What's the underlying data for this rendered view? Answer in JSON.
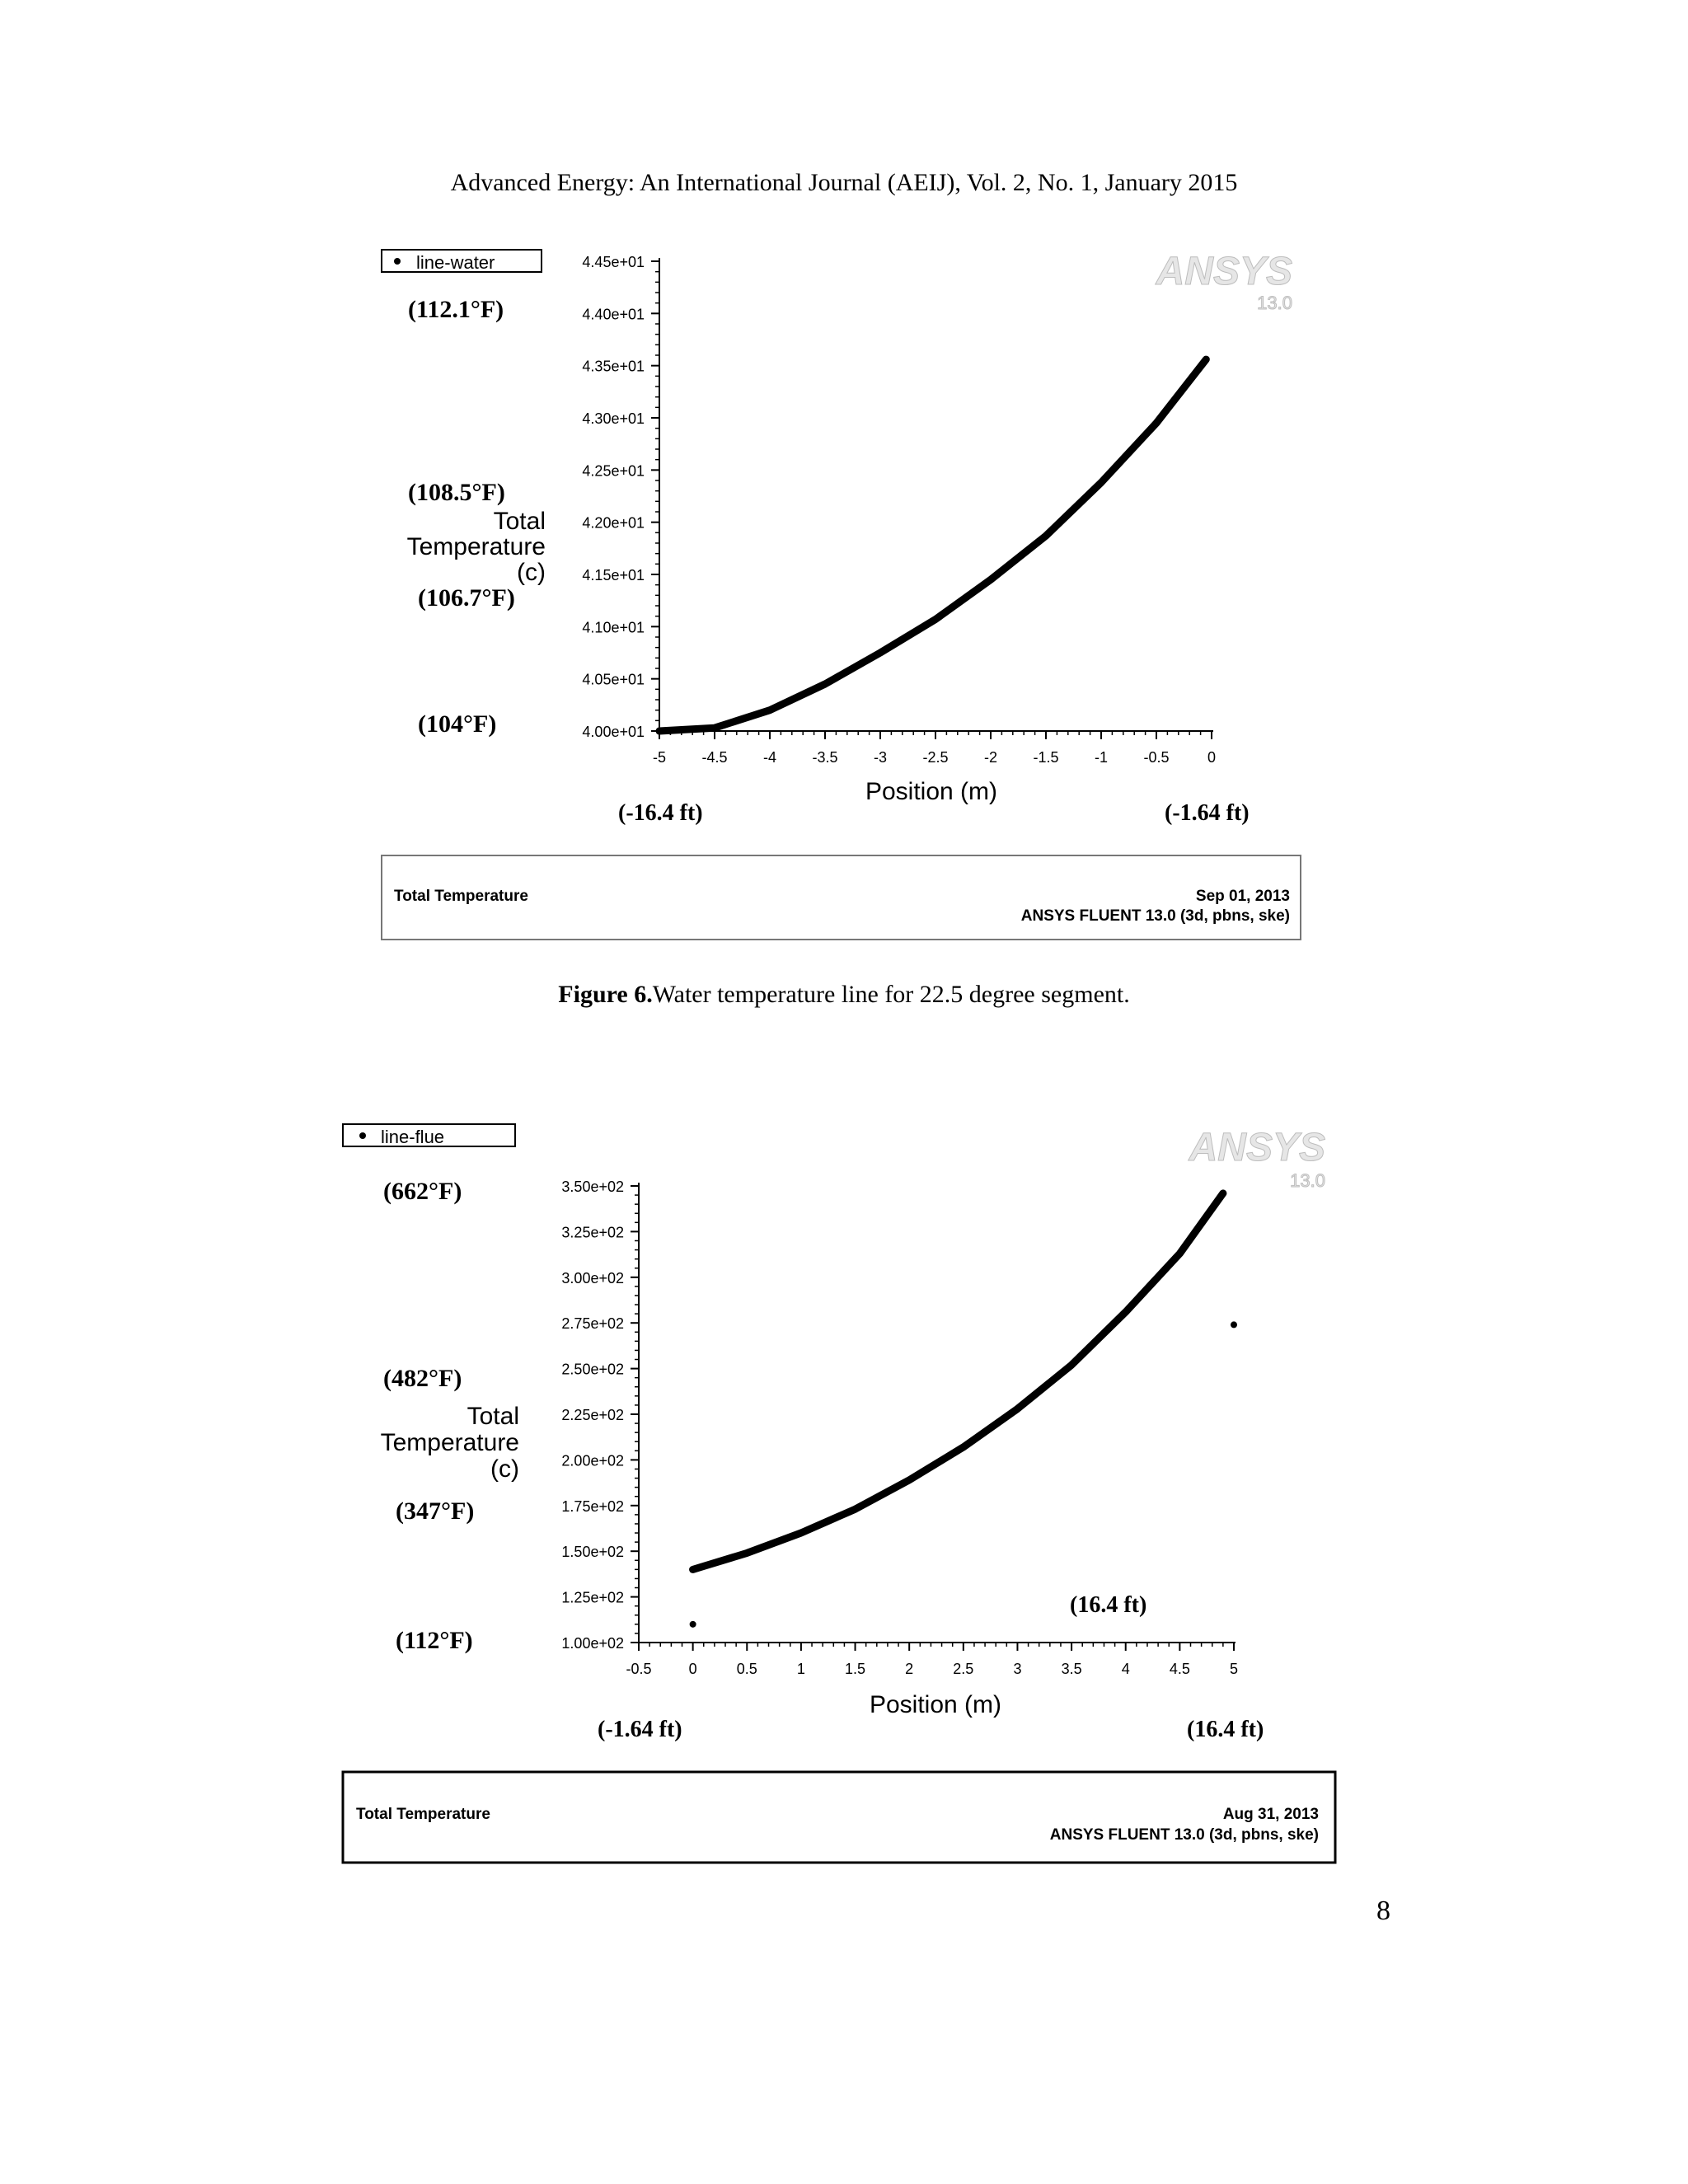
{
  "header": "Advanced Energy: An International Journal (AEIJ), Vol. 2, No. 1, January 2015",
  "page_number": "8",
  "figure6": {
    "caption_bold": "Figure 6.",
    "caption_text": "Water temperature line for 22.5 degree segment.",
    "legend": "line-water",
    "logo": "ANSYS",
    "logo_version": "13.0",
    "footer_left": "Total Temperature",
    "footer_date": "Sep 01, 2013",
    "footer_solver": "ANSYS FLUENT 13.0 (3d, pbns, ske)",
    "f_labels": [
      "(112.1°F)",
      "(108.5°F)",
      "(106.7°F)",
      "(104°F)"
    ],
    "ft_labels": [
      "(-16.4 ft)",
      "(-1.64 ft)"
    ]
  },
  "figure7": {
    "legend": "line-flue",
    "logo": "ANSYS",
    "logo_version": "13.0",
    "footer_left": "Total Temperature",
    "footer_date": "Aug 31, 2013",
    "footer_solver": "ANSYS FLUENT 13.0 (3d, pbns, ske)",
    "f_labels": [
      "(662°F)",
      "(482°F)",
      "(347°F)",
      "(112°F)"
    ],
    "ft_labels": [
      "(-1.64 ft)",
      "(16.4 ft)"
    ],
    "ft_inside_label": "(16.4 ft)"
  },
  "chart_data": [
    {
      "type": "scatter",
      "title": "",
      "xlabel": "Position (m)",
      "ylabel": [
        "Total",
        "Temperature",
        "(c)"
      ],
      "xlim": [
        -5,
        0
      ],
      "ylim": [
        40.0,
        44.5
      ],
      "xticks": [
        "-5",
        "-4.5",
        "-4",
        "-3.5",
        "-3",
        "-2.5",
        "-2",
        "-1.5",
        "-1",
        "-0.5",
        "0"
      ],
      "yticks": [
        "4.00e+01",
        "4.05e+01",
        "4.10e+01",
        "4.15e+01",
        "4.20e+01",
        "4.25e+01",
        "4.30e+01",
        "4.35e+01",
        "4.40e+01",
        "4.45e+01"
      ],
      "series": [
        {
          "name": "line-water",
          "x": [
            -5,
            -4.5,
            -4,
            -3.5,
            -3,
            -2.5,
            -2,
            -1.5,
            -1,
            -0.5,
            -0.05
          ],
          "y": [
            40.0,
            40.03,
            40.2,
            40.45,
            40.75,
            41.07,
            41.45,
            41.87,
            42.38,
            42.95,
            43.56
          ]
        }
      ]
    },
    {
      "type": "scatter",
      "title": "",
      "xlabel": "Position (m)",
      "ylabel": [
        "Total",
        "Temperature",
        "(c)"
      ],
      "xlim": [
        -0.5,
        5
      ],
      "ylim": [
        100,
        350
      ],
      "xticks": [
        "-0.5",
        "0",
        "0.5",
        "1",
        "1.5",
        "2",
        "2.5",
        "3",
        "3.5",
        "4",
        "4.5",
        "5"
      ],
      "yticks": [
        "1.00e+02",
        "1.25e+02",
        "1.50e+02",
        "1.75e+02",
        "2.00e+02",
        "2.25e+02",
        "2.50e+02",
        "2.75e+02",
        "3.00e+02",
        "3.25e+02",
        "3.50e+02"
      ],
      "series": [
        {
          "name": "line-flue",
          "x": [
            0,
            0.5,
            1,
            1.5,
            2,
            2.5,
            3,
            3.5,
            4,
            4.5,
            4.9
          ],
          "y": [
            140,
            149,
            160,
            173,
            189,
            207,
            228,
            252,
            281,
            313,
            346
          ]
        },
        {
          "name": "",
          "x": [
            0,
            5
          ],
          "y": [
            110,
            274
          ]
        }
      ]
    }
  ]
}
